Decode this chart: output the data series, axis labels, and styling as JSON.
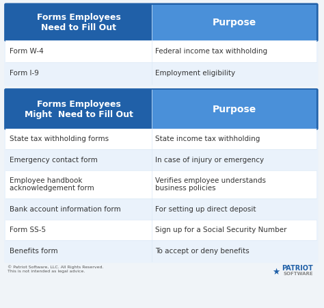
{
  "bg_color": "#f0f4f8",
  "dark_blue": "#2060a8",
  "mid_blue": "#4a90d9",
  "light_blue": "#dbe8f5",
  "lighter_blue": "#eaf2fb",
  "white": "#ffffff",
  "text_dark": "#333333",
  "text_white": "#ffffff",
  "section1_header_col1": "Forms Employees\nNeed to Fill Out",
  "section1_header_col2": "Purpose",
  "section1_rows": [
    [
      "Form W-4",
      "Federal income tax withholding"
    ],
    [
      "Form I-9",
      "Employment eligibility"
    ]
  ],
  "section2_header_col1": "Forms Employees\nMight  Need to Fill Out",
  "section2_header_col2": "Purpose",
  "section2_rows": [
    [
      "State tax withholding forms",
      "State income tax withholding"
    ],
    [
      "Emergency contact form",
      "In case of injury or emergency"
    ],
    [
      "Employee handbook\nacknowledgement form",
      "Verifies employee understands\nbusiness policies"
    ],
    [
      "Bank account information form",
      "For setting up direct deposit"
    ],
    [
      "Form SS-5",
      "Sign up for a Social Security Number"
    ],
    [
      "Benefits form",
      "To accept or deny benefits"
    ]
  ],
  "footer_left": "© Patriot Software, LLC. All Rights Reserved.\nThis is not intended as legal advice.",
  "footer_brand": "PATRIOT",
  "footer_sub": "SOFTWARE",
  "col_split": 0.47,
  "figsize": [
    4.74,
    4.5
  ],
  "dpi": 100
}
